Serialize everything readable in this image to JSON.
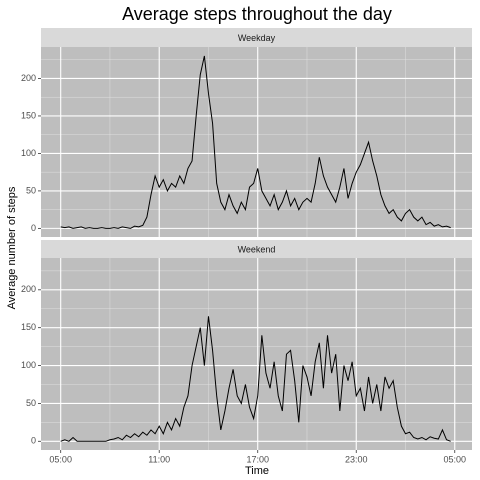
{
  "chart_data": {
    "type": "line",
    "title": "Average steps throughout the day",
    "x_label": "Time",
    "y_label": "Average number of steps",
    "color": "#000000",
    "panel_color": "#bebebe",
    "strip_color": "#d9d9d9",
    "grid": true,
    "x": [
      0,
      0.25,
      0.5,
      0.75,
      1,
      1.25,
      1.5,
      1.75,
      2,
      2.25,
      2.5,
      2.75,
      3,
      3.25,
      3.5,
      3.75,
      4,
      4.25,
      4.5,
      4.75,
      5,
      5.25,
      5.5,
      5.75,
      6,
      6.25,
      6.5,
      6.75,
      7,
      7.25,
      7.5,
      7.75,
      8,
      8.25,
      8.5,
      8.75,
      9,
      9.25,
      9.5,
      9.75,
      10,
      10.25,
      10.5,
      10.75,
      11,
      11.25,
      11.5,
      11.75,
      12,
      12.25,
      12.5,
      12.75,
      13,
      13.25,
      13.5,
      13.75,
      14,
      14.25,
      14.5,
      14.75,
      15,
      15.25,
      15.5,
      15.75,
      16,
      16.25,
      16.5,
      16.75,
      17,
      17.25,
      17.5,
      17.75,
      18,
      18.25,
      18.5,
      18.75,
      19,
      19.25,
      19.5,
      19.75,
      20,
      20.25,
      20.5,
      20.75,
      21,
      21.25,
      21.5,
      21.75,
      22,
      22.25,
      22.5,
      22.75,
      23,
      23.25,
      23.5,
      23.75
    ],
    "xlim": [
      -1.2,
      25.05
    ],
    "xticks": [
      {
        "value": 0,
        "label": "05:00"
      },
      {
        "value": 6,
        "label": "11:00"
      },
      {
        "value": 12,
        "label": "17:00"
      },
      {
        "value": 18,
        "label": "23:00"
      },
      {
        "value": 24,
        "label": "05:00"
      }
    ],
    "xminorticks": [
      3,
      9,
      15,
      21
    ],
    "ylim": [
      -11.5,
      242
    ],
    "yticks": [
      0,
      50,
      100,
      150,
      200
    ],
    "yminorticks": [
      25,
      75,
      125,
      175,
      225
    ],
    "facets": [
      {
        "name": "Weekday",
        "values": [
          2,
          1,
          2,
          0,
          1,
          2,
          0,
          1,
          0,
          0,
          1,
          0,
          0,
          1,
          0,
          2,
          1,
          0,
          3,
          2,
          4,
          15,
          45,
          70,
          55,
          65,
          50,
          60,
          55,
          70,
          60,
          80,
          90,
          150,
          205,
          230,
          180,
          140,
          60,
          35,
          25,
          45,
          30,
          20,
          35,
          25,
          55,
          60,
          80,
          50,
          40,
          30,
          45,
          25,
          35,
          50,
          30,
          40,
          25,
          35,
          40,
          35,
          60,
          95,
          70,
          55,
          45,
          35,
          55,
          80,
          40,
          60,
          75,
          85,
          100,
          115,
          90,
          70,
          45,
          30,
          20,
          25,
          15,
          10,
          20,
          25,
          15,
          10,
          15,
          5,
          8,
          3,
          5,
          2,
          3,
          1
        ]
      },
      {
        "name": "Weekend",
        "values": [
          0,
          2,
          0,
          5,
          0,
          0,
          0,
          0,
          0,
          0,
          0,
          0,
          2,
          3,
          5,
          2,
          8,
          5,
          10,
          6,
          12,
          8,
          15,
          10,
          20,
          10,
          25,
          15,
          30,
          20,
          45,
          60,
          100,
          125,
          150,
          100,
          165,
          120,
          60,
          15,
          40,
          70,
          95,
          60,
          50,
          75,
          45,
          30,
          60,
          140,
          90,
          70,
          105,
          60,
          40,
          115,
          120,
          80,
          25,
          100,
          85,
          60,
          105,
          130,
          70,
          140,
          90,
          115,
          40,
          100,
          80,
          105,
          60,
          70,
          40,
          85,
          50,
          75,
          40,
          85,
          70,
          80,
          45,
          20,
          10,
          12,
          5,
          3,
          5,
          2,
          6,
          4,
          3,
          15,
          2,
          0
        ]
      }
    ]
  }
}
